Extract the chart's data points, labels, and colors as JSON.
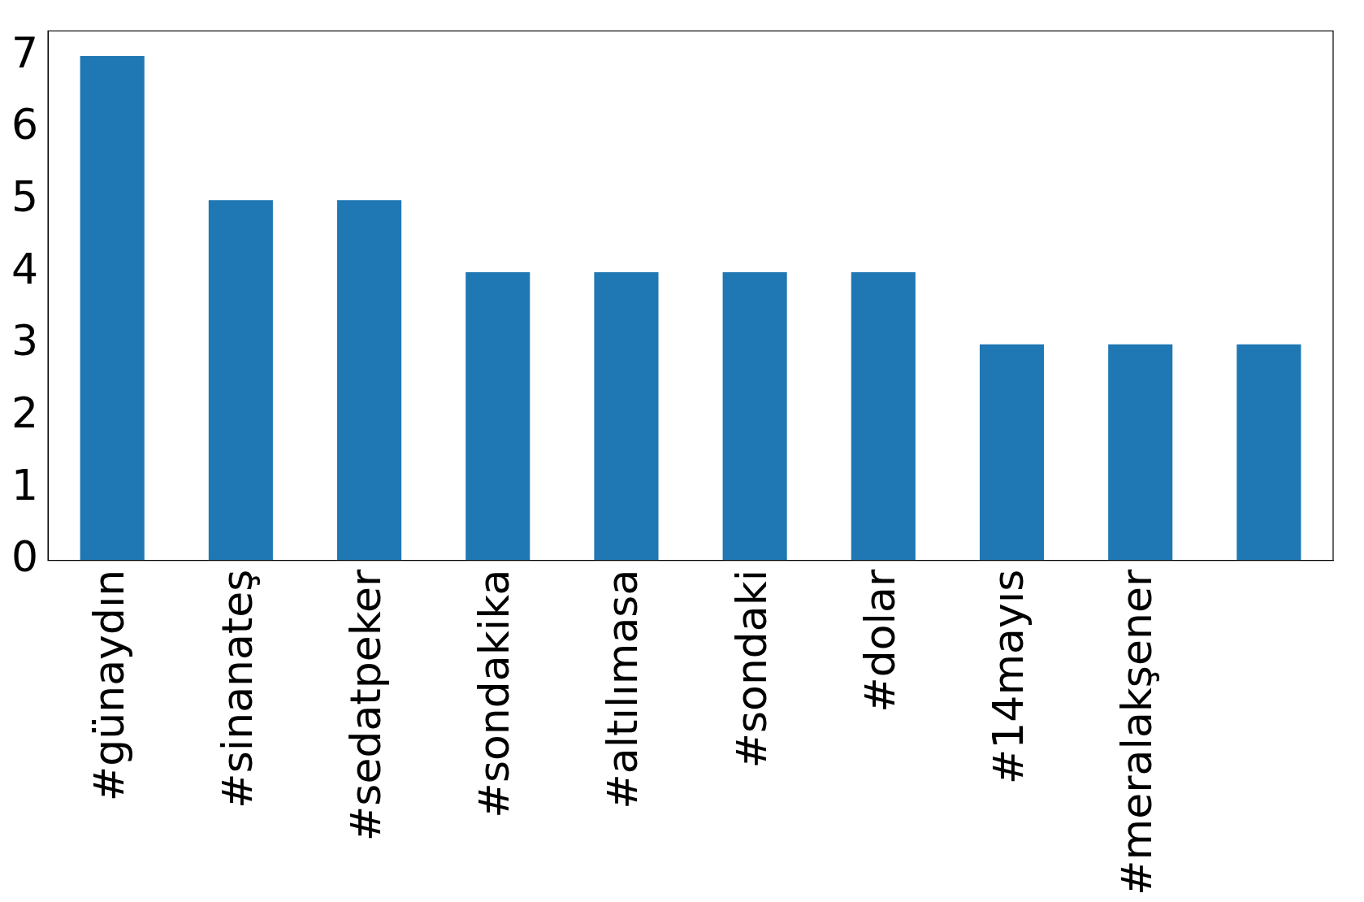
{
  "chart_data": {
    "type": "bar",
    "categories": [
      "#günaydın",
      "#sinanateş",
      "#sedatpeker",
      "#sondakika",
      "#altılımasa",
      "#sondaki",
      "#dolar",
      "#14mayıs",
      "#meralakşener",
      null
    ],
    "values": [
      7,
      5,
      5,
      4,
      4,
      4,
      4,
      3,
      3,
      3
    ],
    "color": "#1f77b4",
    "ylim": [
      0,
      7.35
    ],
    "yticks": [
      0,
      1,
      2,
      3,
      4,
      5,
      6,
      7
    ],
    "grid": false,
    "legend": false
  }
}
